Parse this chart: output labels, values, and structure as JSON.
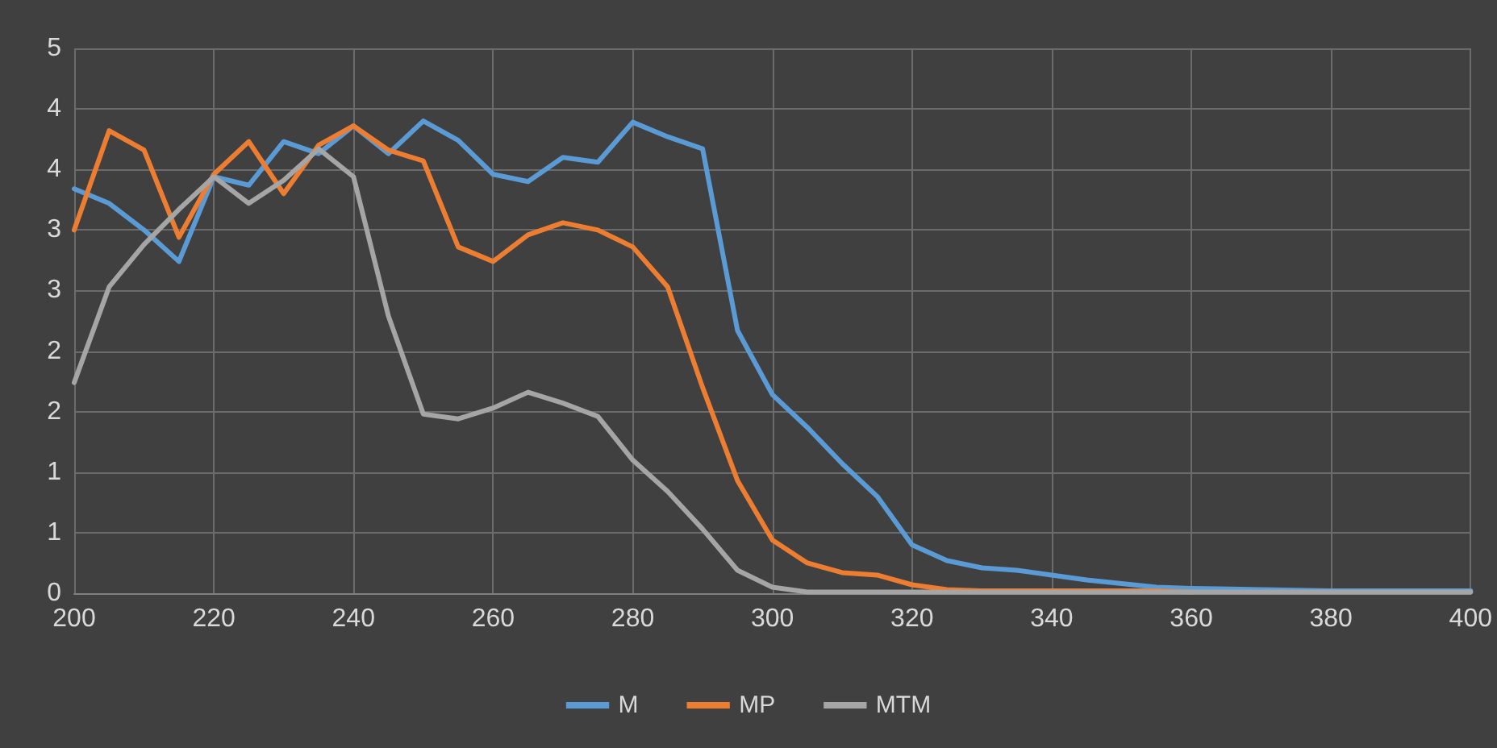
{
  "chart_data": {
    "type": "line",
    "x": [
      200,
      205,
      210,
      215,
      220,
      225,
      230,
      235,
      240,
      245,
      250,
      255,
      260,
      265,
      270,
      275,
      280,
      285,
      290,
      295,
      300,
      305,
      310,
      315,
      320,
      325,
      330,
      335,
      340,
      345,
      350,
      355,
      360,
      370,
      380,
      390,
      400
    ],
    "series": [
      {
        "name": "M",
        "color": "#5b9bd5",
        "values": [
          3.34,
          3.22,
          3.0,
          2.74,
          3.44,
          3.37,
          3.73,
          3.63,
          3.86,
          3.63,
          3.9,
          3.74,
          3.46,
          3.4,
          3.6,
          3.56,
          3.89,
          3.77,
          3.67,
          2.17,
          1.64,
          1.37,
          1.07,
          0.8,
          0.4,
          0.27,
          0.21,
          0.19,
          0.15,
          0.11,
          0.08,
          0.05,
          0.04,
          0.03,
          0.02,
          0.02,
          0.02
        ]
      },
      {
        "name": "MP",
        "color": "#ed7d31",
        "values": [
          3.0,
          3.82,
          3.66,
          2.94,
          3.46,
          3.73,
          3.3,
          3.7,
          3.86,
          3.66,
          3.57,
          2.86,
          2.74,
          2.96,
          3.06,
          3.0,
          2.86,
          2.53,
          1.7,
          0.93,
          0.44,
          0.25,
          0.17,
          0.15,
          0.07,
          0.03,
          0.02,
          0.02,
          0.02,
          0.02,
          0.02,
          0.02,
          0.01,
          null,
          null,
          null,
          null
        ]
      },
      {
        "name": "MTM",
        "color": "#a5a5a5",
        "values": [
          1.74,
          2.53,
          2.88,
          3.17,
          3.44,
          3.22,
          3.41,
          3.67,
          3.44,
          2.29,
          1.48,
          1.44,
          1.53,
          1.66,
          1.57,
          1.46,
          1.1,
          0.84,
          0.53,
          0.19,
          0.05,
          0.01,
          0.01,
          0.01,
          0.01,
          0.01,
          0.01,
          0.01,
          0.01,
          0.01,
          0.01,
          0.01,
          0.01,
          0.01,
          0.01,
          0.01,
          0.01
        ]
      }
    ],
    "xlim": [
      200,
      400
    ],
    "xticks": [
      200,
      220,
      240,
      260,
      280,
      300,
      320,
      340,
      360,
      380,
      400
    ],
    "ylim": [
      0,
      4.5
    ],
    "yticks": [
      0,
      {
        "value": 0.5,
        "label": "1"
      },
      1,
      {
        "value": 1.5,
        "label": "2"
      },
      2,
      {
        "value": 2.5,
        "label": "3"
      },
      3,
      {
        "value": 3.5,
        "label": "4"
      },
      4,
      {
        "value": 4.5,
        "label": "5"
      }
    ],
    "grid": true,
    "legend": "bottom",
    "marker": "none",
    "line_style": "solid"
  }
}
